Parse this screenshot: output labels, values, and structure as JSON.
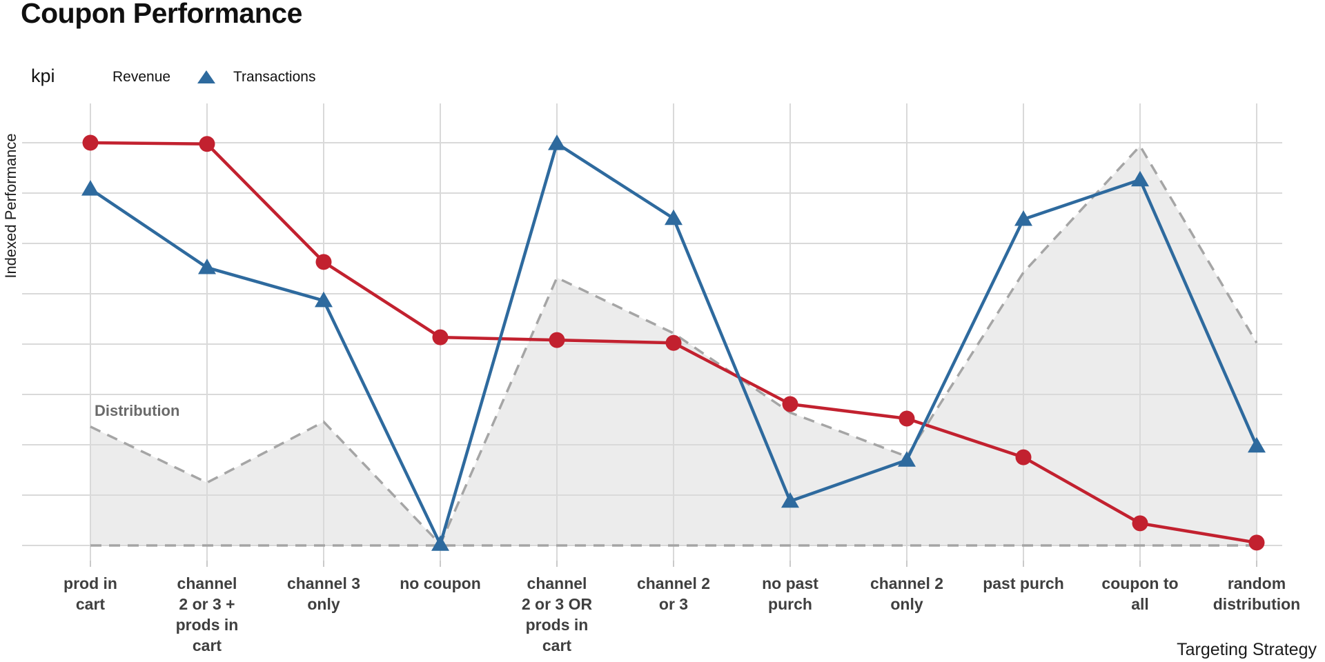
{
  "chart_data": {
    "type": "line",
    "title": "Coupon Performance",
    "xlabel": "Targeting Strategy",
    "ylabel": "Indexed Performance",
    "legend_title": "kpi",
    "grid": true,
    "legend_position": "top-left",
    "ylim": [
      0,
      100
    ],
    "y_gridline_step": 12.5,
    "categories": [
      "prod in cart",
      "channel 2 or 3 + prods in cart",
      "channel 3 only",
      "no coupon",
      "channel 2 or 3 OR prods in cart",
      "channel 2 or 3",
      "no past purch",
      "channel 2 only",
      "past purch",
      "coupon to all",
      "random distribution"
    ],
    "category_label_lines": [
      [
        "prod in",
        "cart"
      ],
      [
        "channel",
        "2 or 3 +",
        "prods in",
        "cart"
      ],
      [
        "channel 3",
        "only"
      ],
      [
        "no coupon"
      ],
      [
        "channel",
        "2 or 3 OR",
        "prods in",
        "cart"
      ],
      [
        "channel 2",
        "or 3"
      ],
      [
        "no past",
        "purch"
      ],
      [
        "channel 2",
        "only"
      ],
      [
        "past purch"
      ],
      [
        "coupon to",
        "all"
      ],
      [
        "random",
        "distribution"
      ]
    ],
    "series": [
      {
        "name": "Revenue",
        "marker": "circle",
        "color": "#c2212f",
        "values": [
          100,
          99.7,
          70.4,
          51.7,
          51.0,
          50.3,
          35.1,
          31.5,
          21.9,
          5.5,
          0.7
        ]
      },
      {
        "name": "Transactions",
        "marker": "triangle",
        "color": "#2e6a9e",
        "values": [
          88.5,
          69.0,
          60.8,
          0.3,
          99.8,
          81.2,
          11.0,
          21.2,
          81.0,
          90.8,
          24.7
        ]
      }
    ],
    "distribution": {
      "name": "Distribution",
      "style": "dashed-area",
      "fill_color": "#ececec",
      "line_color": "#a5a5a5",
      "values": [
        29.5,
        15.6,
        30.7,
        0.3,
        66.5,
        52.7,
        33.0,
        22.1,
        67.8,
        99.2,
        50.3
      ]
    },
    "baseline": {
      "value": 0,
      "style": "dashed",
      "color": "#a5a5a5"
    },
    "colors": {
      "gridline": "#d9d9d9",
      "tick": "#c9c9c9",
      "category_label": "#3f3f3f",
      "title": "#101010"
    }
  }
}
